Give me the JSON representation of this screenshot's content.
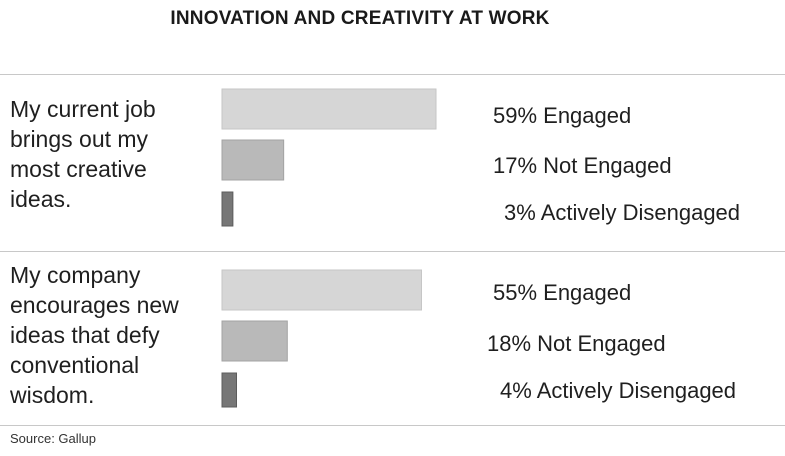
{
  "title": "INNOVATION AND CREATIVITY AT WORK",
  "source": "Source: Gallup",
  "chart_data": {
    "type": "bar",
    "orientation": "horizontal",
    "title": "INNOVATION AND CREATIVITY AT WORK",
    "xlim": [
      0,
      100
    ],
    "grid": false,
    "legend": "none",
    "colors": [
      "#d6d6d6",
      "#b9b9b9",
      "#777777"
    ],
    "groups": [
      {
        "question": "My current job brings out my most creative ideas.",
        "bars": [
          {
            "category": "Engaged",
            "value": 59,
            "label": "59% Engaged"
          },
          {
            "category": "Not Engaged",
            "value": 17,
            "label": "17% Not Engaged"
          },
          {
            "category": "Actively Disengaged",
            "value": 3,
            "label": "3% Actively Disengaged"
          }
        ]
      },
      {
        "question": "My company encourages new ideas that defy conventional wisdom.",
        "bars": [
          {
            "category": "Engaged",
            "value": 55,
            "label": "55% Engaged"
          },
          {
            "category": "Not Engaged",
            "value": 18,
            "label": "18% Not Engaged"
          },
          {
            "category": "Actively Disengaged",
            "value": 4,
            "label": "4% Actively Disengaged"
          }
        ]
      }
    ]
  }
}
